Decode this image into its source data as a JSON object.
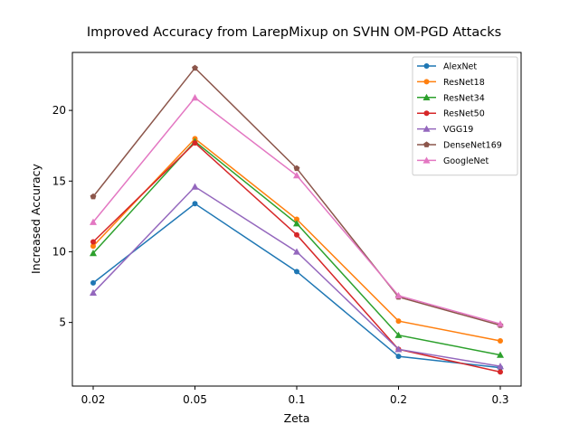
{
  "chart_data": {
    "type": "line",
    "title": "Improved Accuracy from LarepMixup on SVHN OM-PGD Attacks",
    "xlabel": "Zeta",
    "ylabel": "Increased Accuracy",
    "categories": [
      "0.02",
      "0.05",
      "0.1",
      "0.2",
      "0.3"
    ],
    "y_ticks": [
      5,
      10,
      15,
      20
    ],
    "ylim": [
      0.5,
      24.1
    ],
    "grid": false,
    "legend_position": "top-right",
    "series": [
      {
        "name": "AlexNet",
        "color": "#1f77b4",
        "marker": "circle",
        "values": [
          7.8,
          13.4,
          8.6,
          2.6,
          1.8
        ]
      },
      {
        "name": "ResNet18",
        "color": "#ff7f0e",
        "marker": "circle",
        "values": [
          10.4,
          18.0,
          12.3,
          5.1,
          3.7
        ]
      },
      {
        "name": "ResNet34",
        "color": "#2ca02c",
        "marker": "triangle",
        "values": [
          9.9,
          17.8,
          12.0,
          4.1,
          2.7
        ]
      },
      {
        "name": "ResNet50",
        "color": "#d62728",
        "marker": "circle",
        "values": [
          10.7,
          17.7,
          11.2,
          3.1,
          1.5
        ]
      },
      {
        "name": "VGG19",
        "color": "#9467bd",
        "marker": "triangle",
        "values": [
          7.1,
          14.6,
          10.0,
          3.1,
          1.9
        ]
      },
      {
        "name": "DenseNet169",
        "color": "#8c564b",
        "marker": "pentagon",
        "values": [
          13.9,
          23.0,
          15.9,
          6.8,
          4.8
        ]
      },
      {
        "name": "GoogleNet",
        "color": "#e377c2",
        "marker": "triangle",
        "values": [
          12.1,
          20.9,
          15.4,
          6.9,
          4.9
        ]
      }
    ]
  }
}
